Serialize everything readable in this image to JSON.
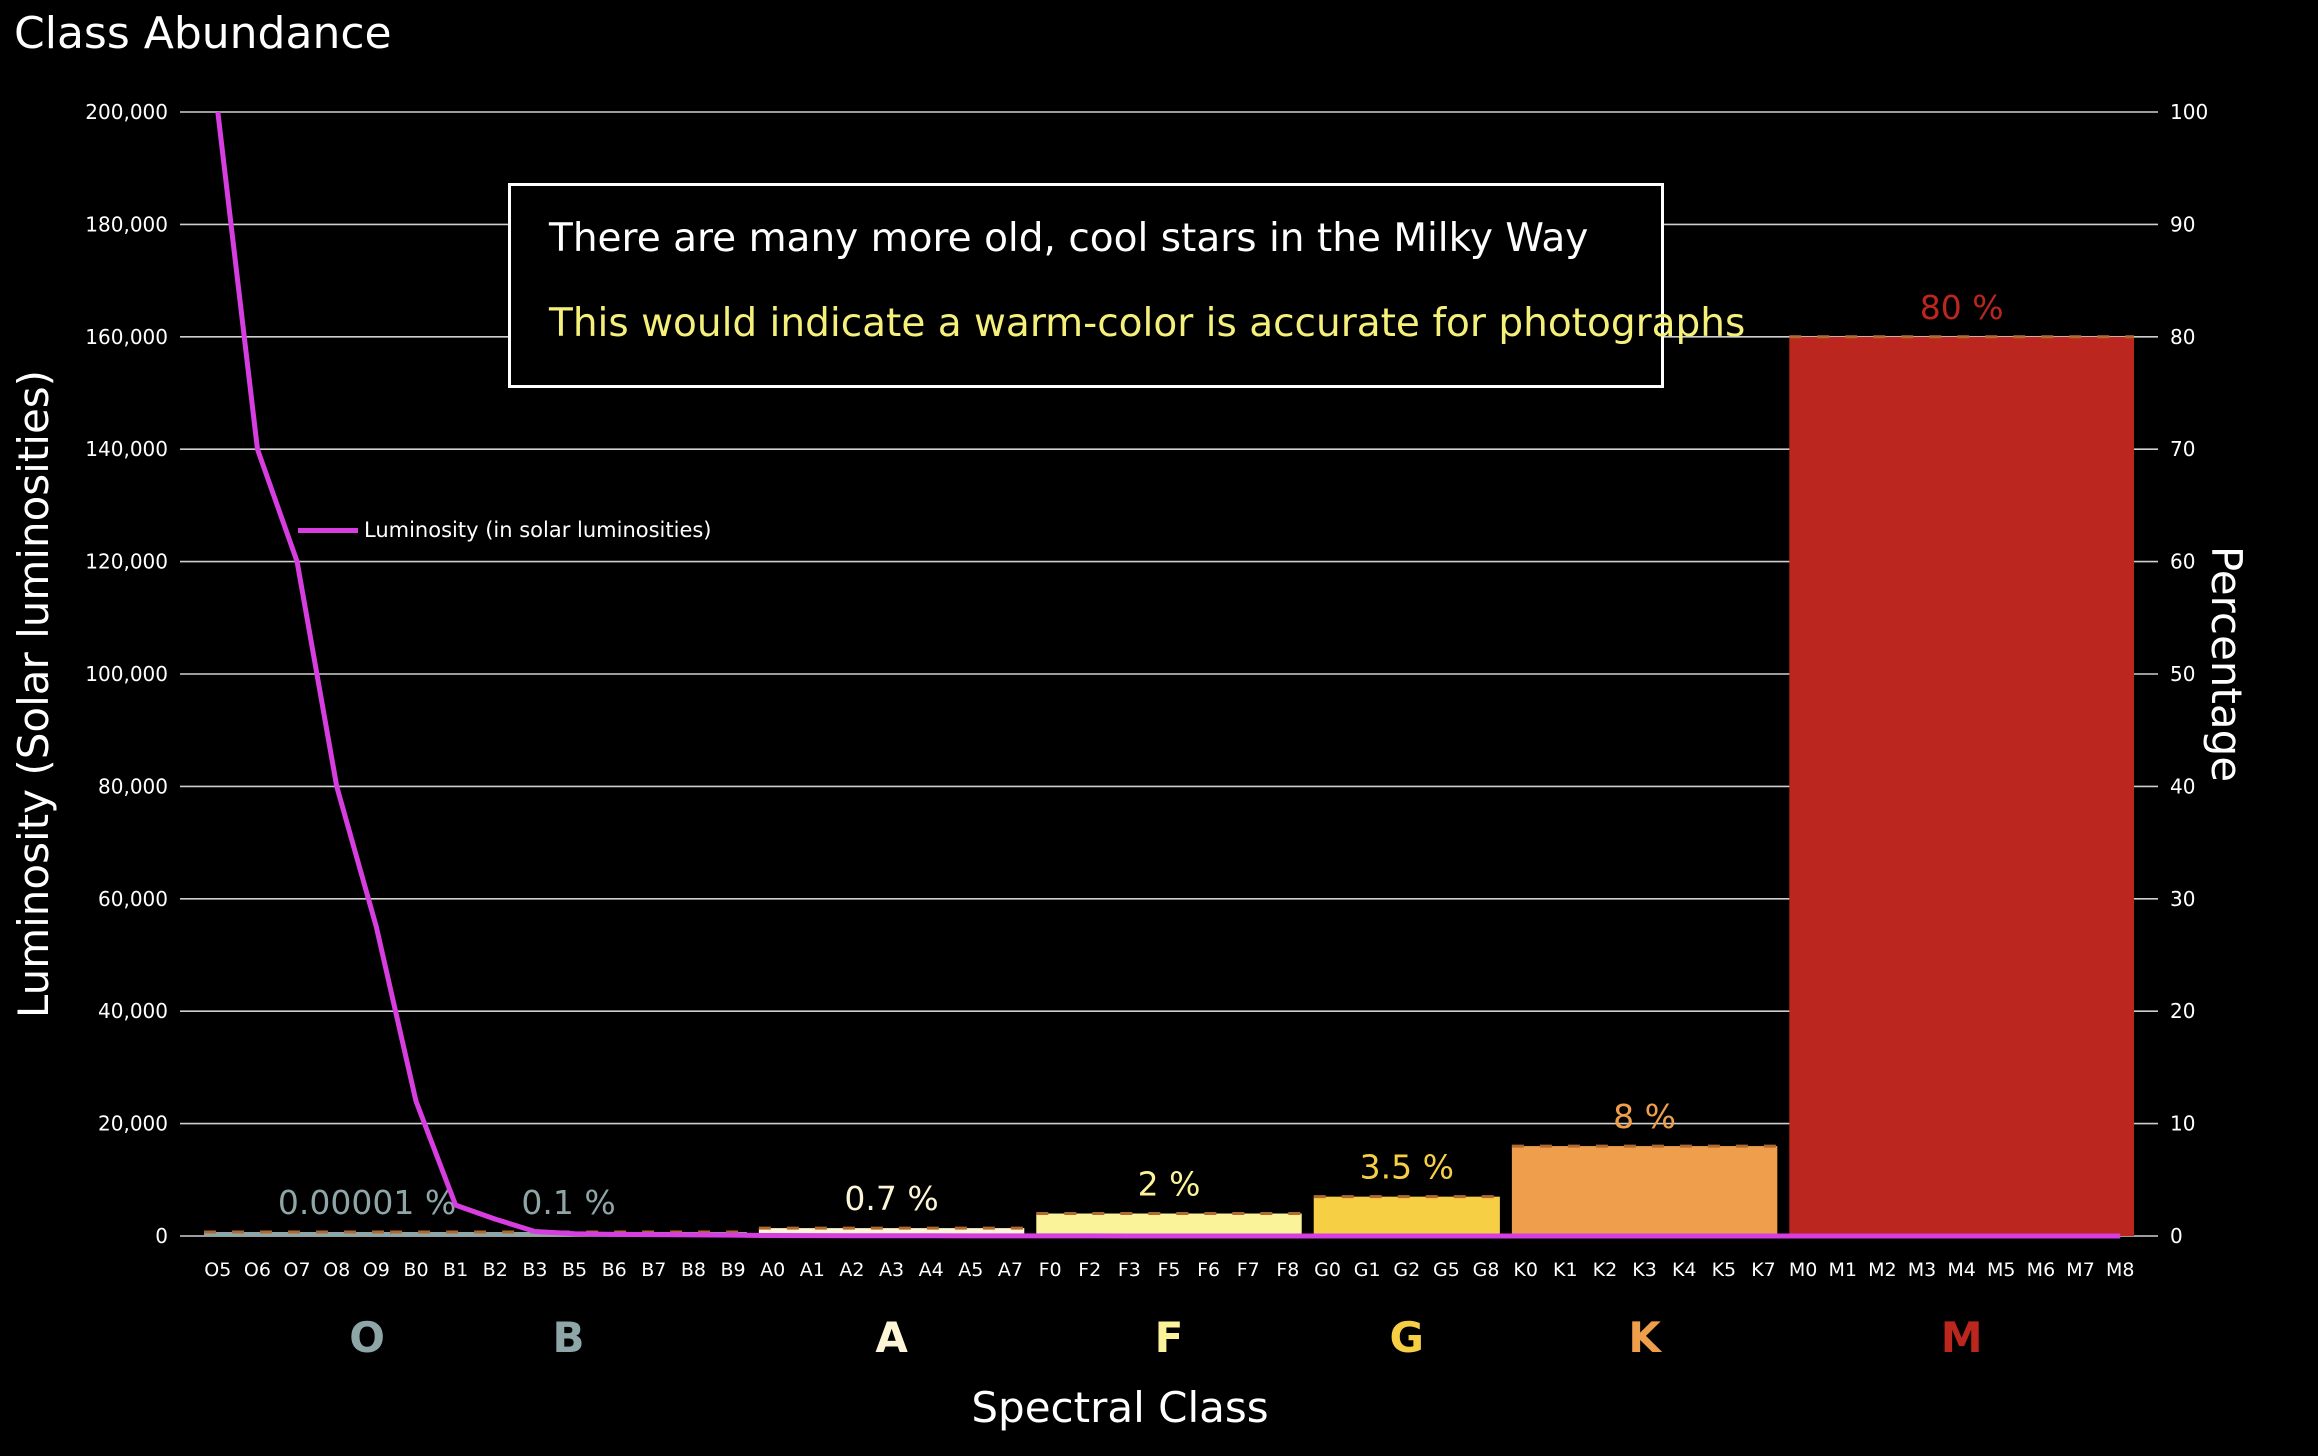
{
  "page_title": "Class Abundance",
  "annotation": {
    "line1": "There are many more old, cool stars in the Milky Way",
    "line2": "This would indicate a warm-color is accurate for photographs"
  },
  "colors": {
    "background": "#000000",
    "luminosity_line": "#d63ee0",
    "annotation_highlight": "#f4f07a",
    "O": "#8fa6a8",
    "B": "#8fa6a8",
    "A": "#fdf6d6",
    "F": "#fbf39a",
    "G": "#f6cf45",
    "K": "#ef9f4c",
    "M": "#bb261e"
  },
  "chart_data": {
    "type": "bar",
    "title": "",
    "xlabel": "Spectral Class",
    "ylabel": "Luminosity (Solar luminosities)",
    "y2label": "Percentage",
    "ylim": [
      0,
      200000
    ],
    "y2lim": [
      0,
      100
    ],
    "grid": true,
    "y_ticks": [
      "0",
      "20,000",
      "40,000",
      "60,000",
      "80,000",
      "100,000",
      "120,000",
      "140,000",
      "160,000",
      "180,000",
      "200,000"
    ],
    "y2_ticks": [
      "0",
      "10",
      "20",
      "30",
      "40",
      "50",
      "60",
      "70",
      "80",
      "90",
      "100"
    ],
    "categories": [
      "O5",
      "O6",
      "O7",
      "O8",
      "O9",
      "B0",
      "B1",
      "B2",
      "B3",
      "B5",
      "B6",
      "B7",
      "B8",
      "B9",
      "A0",
      "A1",
      "A2",
      "A3",
      "A4",
      "A5",
      "A7",
      "F0",
      "F2",
      "F3",
      "F5",
      "F6",
      "F7",
      "F8",
      "G0",
      "G1",
      "G2",
      "G5",
      "G8",
      "K0",
      "K1",
      "K2",
      "K3",
      "K4",
      "K5",
      "K7",
      "M0",
      "M1",
      "M2",
      "M3",
      "M4",
      "M5",
      "M6",
      "M7",
      "M8"
    ],
    "class_bars": [
      {
        "class": "O",
        "percent": 1e-05,
        "label": "0.00001 %",
        "from": "O5",
        "to": "O9"
      },
      {
        "class": "B",
        "percent": 0.1,
        "label": "0.1 %",
        "from": "B0",
        "to": "B9"
      },
      {
        "class": "A",
        "percent": 0.7,
        "label": "0.7 %",
        "from": "A0",
        "to": "A7"
      },
      {
        "class": "F",
        "percent": 2,
        "label": "2 %",
        "from": "F0",
        "to": "F8"
      },
      {
        "class": "G",
        "percent": 3.5,
        "label": "3.5 %",
        "from": "G0",
        "to": "G8"
      },
      {
        "class": "K",
        "percent": 8,
        "label": "8 %",
        "from": "K0",
        "to": "K7"
      },
      {
        "class": "M",
        "percent": 80,
        "label": "80 %",
        "from": "M0",
        "to": "M8"
      }
    ],
    "series": [
      {
        "name": "Luminosity (in solar luminosities)",
        "type": "line",
        "values": [
          200000,
          140000,
          120000,
          80000,
          55000,
          24000,
          5500,
          3000,
          800,
          400,
          300,
          250,
          200,
          150,
          80,
          60,
          50,
          40,
          35,
          30,
          20,
          15,
          12,
          10,
          8,
          6,
          5,
          4,
          3,
          2.5,
          2,
          1.5,
          1,
          0.8,
          0.6,
          0.5,
          0.4,
          0.3,
          0.2,
          0.15,
          0.1,
          0.08,
          0.06,
          0.05,
          0.04,
          0.03,
          0.02,
          0.01,
          0.01
        ]
      }
    ],
    "legend_position": "upper-left"
  }
}
